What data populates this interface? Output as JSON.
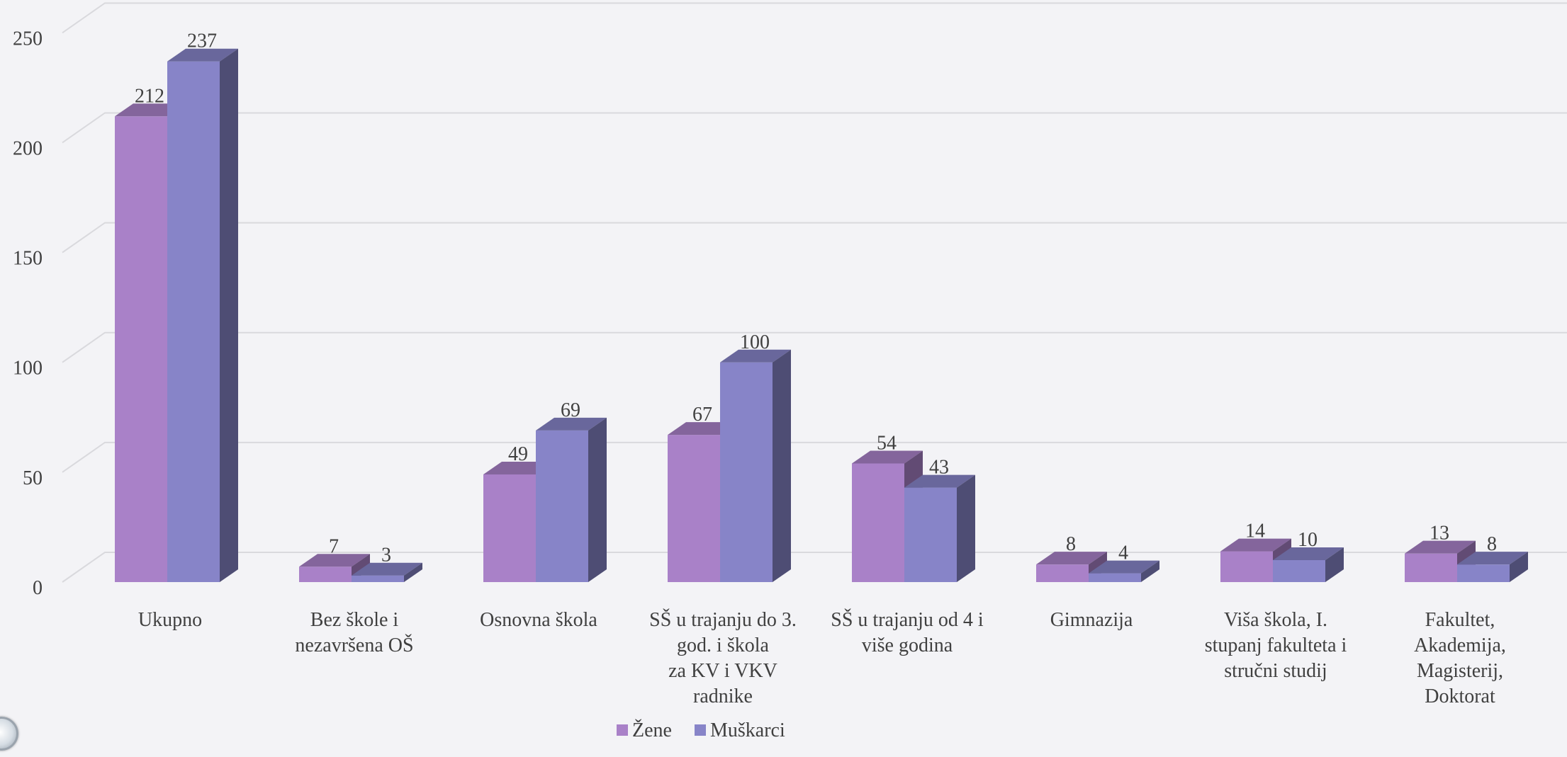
{
  "chart_data": {
    "type": "bar",
    "style": "3d-clustered-column",
    "title": "",
    "xlabel": "",
    "ylabel": "",
    "categories": [
      "Ukupno",
      "Bez škole i nezavršena OŠ",
      "Osnovna škola",
      "SŠ u trajanju do 3. god. i škola za KV i VKV radnike",
      "SŠ u trajanju od 4 i više godina",
      "Gimnazija",
      "Viša škola, I. stupanj fakulteta i stručni studij",
      "Fakultet, Akademija, Magisterij, Doktorat"
    ],
    "category_lines": [
      [
        "Ukupno"
      ],
      [
        "Bez škole i",
        "nezavršena OŠ"
      ],
      [
        "Osnovna škola"
      ],
      [
        "SŠ u trajanju do 3.",
        "god. i škola",
        "za KV i VKV",
        "radnike"
      ],
      [
        "SŠ u trajanju od 4 i",
        "više godina"
      ],
      [
        "Gimnazija"
      ],
      [
        "Viša škola, I.",
        "stupanj fakulteta i",
        "stručni studij"
      ],
      [
        "Fakultet,",
        "Akademija,",
        "Magisterij,",
        "Doktorat"
      ]
    ],
    "series": [
      {
        "name": "Žene",
        "values": [
          212,
          7,
          49,
          67,
          54,
          8,
          14,
          13
        ],
        "color": "#a981c8"
      },
      {
        "name": "Muškarci",
        "values": [
          237,
          3,
          69,
          100,
          43,
          4,
          10,
          8
        ],
        "color": "#8784c8"
      }
    ],
    "ylim": [
      0,
      250
    ],
    "yticks": [
      0,
      50,
      100,
      150,
      200,
      250
    ],
    "grid": true,
    "legend": "bottom",
    "colors": {
      "background": "#f3f3f6",
      "grid": "#d9d9dd",
      "text": "#404040"
    }
  }
}
